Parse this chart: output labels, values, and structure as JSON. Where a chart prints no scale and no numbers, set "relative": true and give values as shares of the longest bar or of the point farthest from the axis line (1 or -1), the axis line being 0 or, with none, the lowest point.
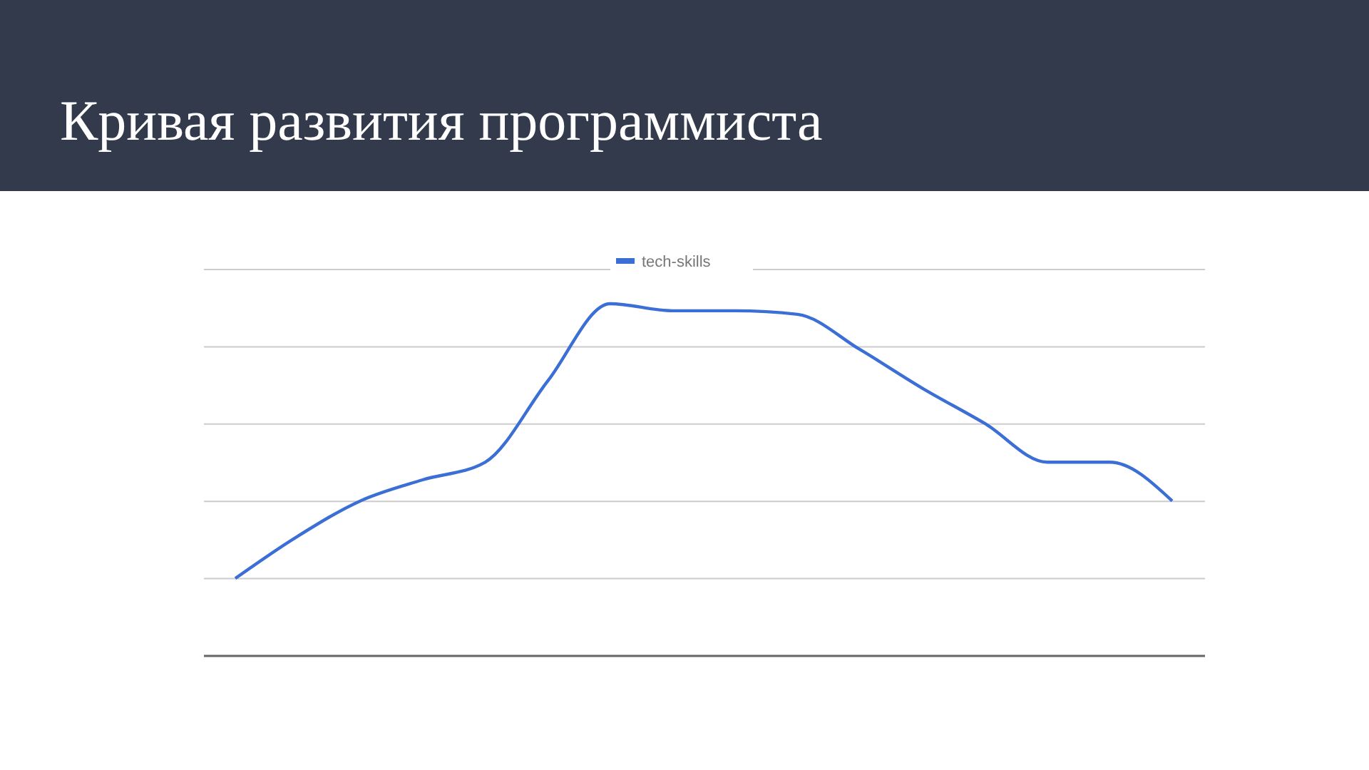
{
  "chart_data": {
    "type": "line",
    "title": "Кривая развития программиста",
    "relative": true,
    "grid": true,
    "legend": "top",
    "marker": "none",
    "categories": [
      null,
      null,
      null,
      null,
      null,
      null,
      null,
      null,
      null,
      null,
      null,
      null,
      null,
      null,
      null,
      null
    ],
    "series": [
      {
        "name": "tech-skills",
        "color": "#3c6fd6",
        "values": [
          0.22,
          0.34,
          0.44,
          0.5,
          0.55,
          0.78,
          1,
          0.98,
          0.98,
          0.97,
          0.87,
          0.76,
          0.66,
          0.55,
          0.55,
          0.44
        ]
      }
    ]
  }
}
